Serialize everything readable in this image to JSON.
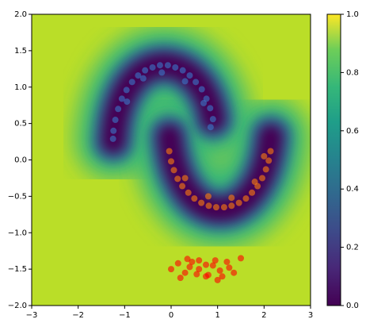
{
  "chart_data": {
    "type": "scatter",
    "xlim": [
      -3,
      3
    ],
    "ylim": [
      -2,
      2
    ],
    "xticks": [
      {
        "value": -3,
        "label": "−3"
      },
      {
        "value": -2,
        "label": "−2"
      },
      {
        "value": -1,
        "label": "−1"
      },
      0,
      1,
      2,
      3
    ],
    "yticks": [
      {
        "value": -2,
        "label": "−2.0"
      },
      {
        "value": -1.5,
        "label": "−1.5"
      },
      {
        "value": -1,
        "label": "−1.0"
      },
      {
        "value": -0.5,
        "label": "−0.5"
      },
      {
        "value": 0,
        "label": "0.0"
      },
      0.5,
      {
        "value": 1,
        "label": "1.0"
      },
      1.5,
      {
        "value": 2,
        "label": "2.0"
      }
    ],
    "alpha": 0.6,
    "series": [
      {
        "color": "#3a78c8",
        "x": [
          0.9,
          0.84,
          0.76,
          0.66,
          0.53,
          0.4,
          0.25,
          0.09,
          -0.07,
          -0.24,
          -0.4,
          -0.56,
          -0.71,
          -0.84,
          -0.96,
          -1.06,
          -1.14,
          -1.2,
          -1.24,
          -1.25,
          0.7,
          0.3,
          -0.2,
          -0.6,
          -0.95,
          0.85
        ],
        "values": [
          0.56,
          0.71,
          0.84,
          0.97,
          1.07,
          1.16,
          1.23,
          1.27,
          1.3,
          1.3,
          1.27,
          1.23,
          1.16,
          1.07,
          0.96,
          0.84,
          0.7,
          0.55,
          0.4,
          0.29,
          0.78,
          1.08,
          1.2,
          1.12,
          0.8,
          0.45
        ]
      },
      {
        "color": "#ff7f0e",
        "x": [
          -0.04,
          0.0,
          0.06,
          0.14,
          0.24,
          0.37,
          0.5,
          0.65,
          0.81,
          0.97,
          1.14,
          1.3,
          1.46,
          1.61,
          1.74,
          1.86,
          1.96,
          2.04,
          2.1,
          2.14,
          0.3,
          0.8,
          1.3,
          1.8,
          2.0
        ],
        "values": [
          0.12,
          -0.02,
          -0.14,
          -0.26,
          -0.36,
          -0.45,
          -0.53,
          -0.59,
          -0.63,
          -0.65,
          -0.65,
          -0.63,
          -0.59,
          -0.53,
          -0.45,
          -0.36,
          -0.25,
          -0.13,
          -0.01,
          0.12,
          -0.25,
          -0.5,
          -0.52,
          -0.3,
          0.05
        ]
      },
      {
        "color": "#ff0000",
        "x": [
          0.0,
          0.15,
          0.3,
          0.45,
          0.6,
          0.75,
          0.9,
          1.05,
          1.2,
          1.35,
          1.5,
          0.2,
          0.4,
          0.6,
          0.8,
          1.0,
          1.25,
          0.35,
          0.55,
          0.75,
          0.95,
          1.1
        ],
        "values": [
          -1.5,
          -1.42,
          -1.55,
          -1.4,
          -1.5,
          -1.6,
          -1.45,
          -1.52,
          -1.4,
          -1.55,
          -1.35,
          -1.62,
          -1.47,
          -1.38,
          -1.58,
          -1.65,
          -1.48,
          -1.36,
          -1.57,
          -1.44,
          -1.38,
          -1.6
        ]
      }
    ],
    "colorbar": {
      "lim": [
        0,
        1
      ],
      "ticks": [
        {
          "value": 0,
          "label": "0.0"
        },
        {
          "value": 0.2,
          "label": "0.2"
        },
        {
          "value": 0.4,
          "label": "0.4"
        },
        {
          "value": 0.6,
          "label": "0.6"
        },
        {
          "value": 0.8,
          "label": "0.8"
        },
        {
          "value": 1,
          "label": "1.0"
        }
      ]
    }
  }
}
